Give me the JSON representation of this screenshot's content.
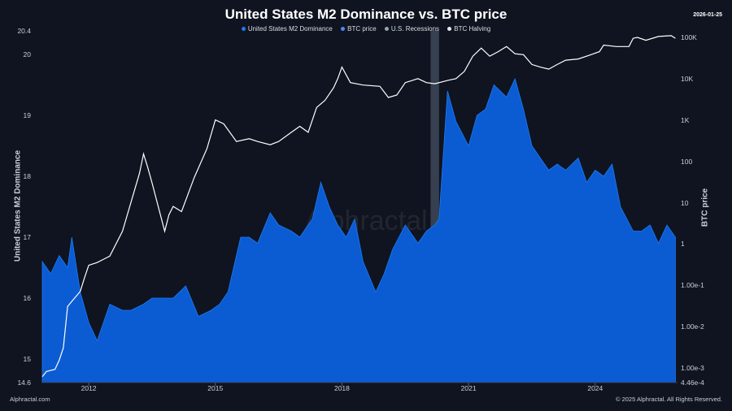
{
  "header": {
    "title": "United States M2 Dominance vs. BTC price",
    "date": "2026-01-25"
  },
  "legend": [
    {
      "label": "United States M2 Dominance",
      "color": "#1e7bf2"
    },
    {
      "label": "BTC price",
      "color": "#4c8bf5"
    },
    {
      "label": "U.S. Recessions",
      "color": "#9aa3b2"
    },
    {
      "label": "BTC Halving",
      "color": "#e6e9ef"
    }
  ],
  "footer": {
    "left": "Alphractal.com",
    "right": "© 2025 Alphractal. All Rights Reserved."
  },
  "watermark": "Alphractal",
  "colors": {
    "background": "#0f1420",
    "m2_fill": "#0b5bd3",
    "m2_line": "#1e7bf2",
    "btc_line": "#ffffff",
    "recession": "#5a6478"
  },
  "chart_data": {
    "type": "area",
    "title": "United States M2 Dominance vs. BTC price",
    "ylabel_left": "United States M2 Dominance",
    "ylabel_right": "BTC price",
    "x_ticks": [
      "2012",
      "2015",
      "2018",
      "2021",
      "2024"
    ],
    "y_left_ticks": [
      "20.4",
      "20",
      "19",
      "18",
      "17",
      "16",
      "15",
      "14.6"
    ],
    "y_left_range": [
      14.6,
      20.4
    ],
    "y_right_ticks": [
      "100K",
      "10K",
      "1K",
      "100",
      "10",
      "1",
      "1.00e-1",
      "1.00e-2",
      "1.00e-3",
      "4.46e-4"
    ],
    "y_right_scale": "log",
    "recession_period": [
      "2020-02",
      "2020-04"
    ],
    "series": [
      {
        "name": "United States M2 Dominance",
        "style": "area",
        "x": [
          2010.9,
          2011.1,
          2011.3,
          2011.5,
          2011.6,
          2011.8,
          2012.0,
          2012.2,
          2012.5,
          2012.8,
          2013.0,
          2013.3,
          2013.5,
          2013.8,
          2014.0,
          2014.3,
          2014.6,
          2014.9,
          2015.1,
          2015.3,
          2015.6,
          2015.8,
          2016.0,
          2016.3,
          2016.5,
          2016.8,
          2017.0,
          2017.3,
          2017.5,
          2017.7,
          2017.9,
          2018.1,
          2018.3,
          2018.5,
          2018.8,
          2019.0,
          2019.2,
          2019.5,
          2019.8,
          2020.0,
          2020.2,
          2020.3,
          2020.5,
          2020.7,
          2021.0,
          2021.2,
          2021.4,
          2021.6,
          2021.9,
          2022.1,
          2022.3,
          2022.5,
          2022.7,
          2022.9,
          2023.1,
          2023.3,
          2023.6,
          2023.8,
          2024.0,
          2024.2,
          2024.4,
          2024.6,
          2024.9,
          2025.1,
          2025.3,
          2025.5,
          2025.7,
          2025.9
        ],
        "y": [
          16.6,
          16.4,
          16.7,
          16.5,
          17.0,
          16.1,
          15.6,
          15.3,
          15.9,
          15.8,
          15.8,
          15.9,
          16.0,
          16.0,
          16.0,
          16.2,
          15.7,
          15.8,
          15.9,
          16.1,
          17.0,
          17.0,
          16.9,
          17.4,
          17.2,
          17.1,
          17.0,
          17.3,
          17.9,
          17.5,
          17.2,
          17.0,
          17.3,
          16.6,
          16.1,
          16.4,
          16.8,
          17.2,
          16.9,
          17.1,
          17.2,
          17.3,
          19.4,
          18.9,
          18.5,
          19.0,
          19.1,
          19.5,
          19.3,
          19.6,
          19.1,
          18.5,
          18.3,
          18.1,
          18.2,
          18.1,
          18.3,
          17.9,
          18.1,
          18.0,
          18.2,
          17.5,
          17.1,
          17.1,
          17.2,
          16.9,
          17.2,
          17.0
        ]
      },
      {
        "name": "BTC price",
        "style": "line",
        "x": [
          2010.9,
          2011.0,
          2011.2,
          2011.3,
          2011.4,
          2011.5,
          2011.6,
          2011.8,
          2011.9,
          2012.0,
          2012.2,
          2012.5,
          2012.8,
          2013.0,
          2013.2,
          2013.3,
          2013.4,
          2013.5,
          2013.8,
          2013.9,
          2014.0,
          2014.2,
          2014.5,
          2014.8,
          2015.0,
          2015.2,
          2015.5,
          2015.8,
          2016.0,
          2016.3,
          2016.5,
          2016.8,
          2017.0,
          2017.2,
          2017.4,
          2017.6,
          2017.8,
          2017.9,
          2018.0,
          2018.2,
          2018.5,
          2018.9,
          2019.1,
          2019.3,
          2019.5,
          2019.8,
          2020.0,
          2020.2,
          2020.5,
          2020.7,
          2020.9,
          2021.1,
          2021.3,
          2021.5,
          2021.7,
          2021.9,
          2022.1,
          2022.3,
          2022.5,
          2022.7,
          2022.9,
          2023.1,
          2023.3,
          2023.6,
          2023.9,
          2024.1,
          2024.2,
          2024.5,
          2024.8,
          2024.9,
          2025.0,
          2025.2,
          2025.5,
          2025.8,
          2025.9
        ],
        "y": [
          0.0006,
          0.0008,
          0.0009,
          0.0015,
          0.003,
          0.03,
          0.04,
          0.07,
          0.15,
          0.3,
          0.35,
          0.5,
          2,
          10,
          50,
          150,
          70,
          30,
          2,
          5,
          8,
          6,
          40,
          200,
          1000,
          800,
          300,
          350,
          300,
          250,
          300,
          500,
          700,
          500,
          2000,
          3000,
          6000,
          10000,
          19000,
          8000,
          7000,
          6500,
          3500,
          4000,
          8000,
          10000,
          8000,
          7500,
          9000,
          10000,
          15000,
          35000,
          55000,
          35000,
          45000,
          60000,
          40000,
          38000,
          22000,
          19000,
          17000,
          22000,
          28000,
          30000,
          38000,
          45000,
          65000,
          60000,
          60000,
          95000,
          100000,
          85000,
          105000,
          110000,
          95000
        ]
      }
    ]
  }
}
